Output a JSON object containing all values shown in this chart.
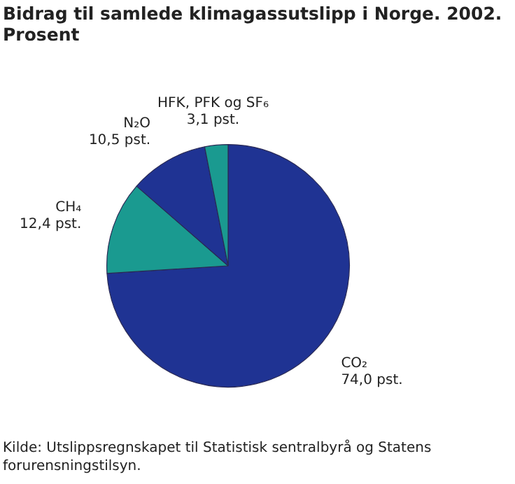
{
  "chart_data": {
    "type": "pie",
    "title": "Bidrag til samlede klimagassutslipp i Norge. 2002. Prosent",
    "categories": [
      "CO₂",
      "CH₄",
      "N₂O",
      "HFK, PFK og SF₆"
    ],
    "values": [
      74.0,
      12.4,
      10.5,
      3.1
    ],
    "value_labels": [
      "74,0 pst.",
      "12,4 pst.",
      "10,5 pst.",
      "3,1 pst."
    ],
    "colors": [
      "#1f3393",
      "#1a9a90",
      "#1f3393",
      "#1a9a90"
    ],
    "annotations": [
      "Kilde: Utslippsregnskapet til Statistisk sentralbyrå og Statens forurensningstilsyn."
    ],
    "legend": false
  }
}
